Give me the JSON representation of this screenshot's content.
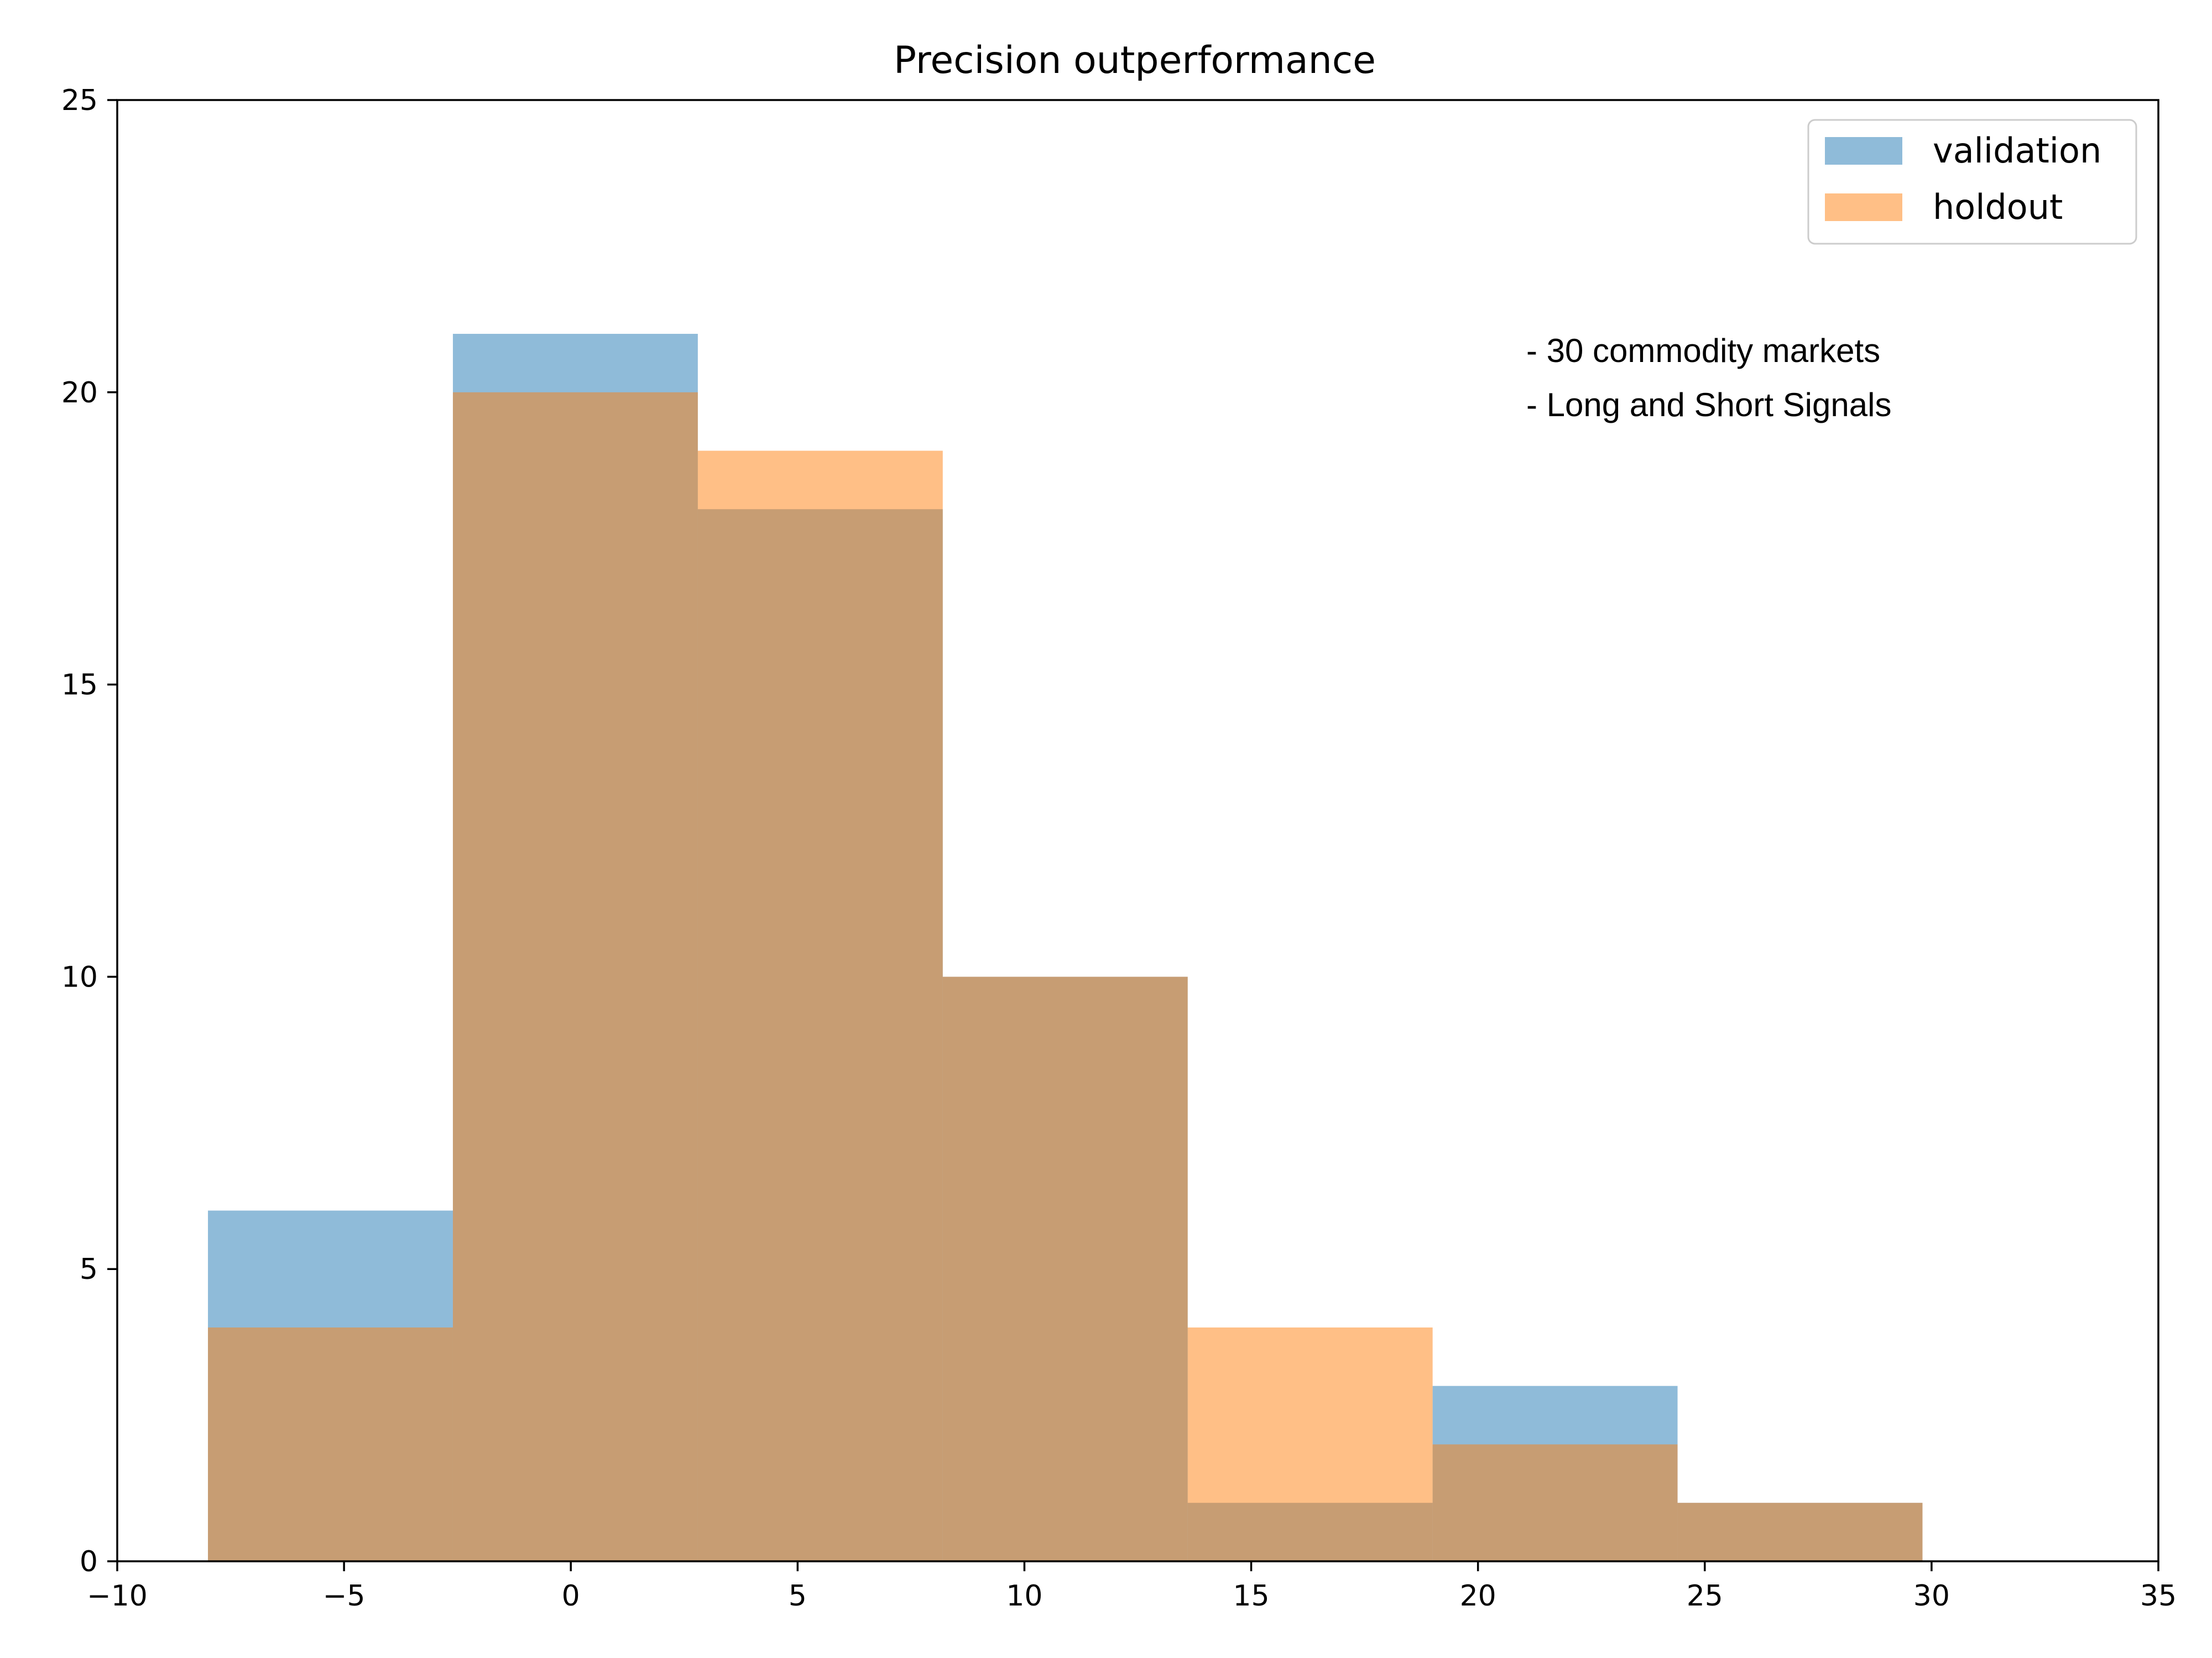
{
  "chart_data": {
    "type": "bar",
    "title": "Precision outperformance",
    "xlabel": "",
    "ylabel": "",
    "xlim": [
      -10,
      35
    ],
    "ylim": [
      0,
      25
    ],
    "xticks": [
      -10,
      -5,
      0,
      5,
      10,
      15,
      20,
      25,
      30,
      35
    ],
    "xtick_labels": [
      "−10",
      "−5",
      "0",
      "5",
      "10",
      "15",
      "20",
      "25",
      "30",
      "35"
    ],
    "yticks": [
      0,
      5,
      10,
      15,
      20,
      25
    ],
    "ytick_labels": [
      "0",
      "5",
      "10",
      "15",
      "20",
      "25"
    ],
    "bin_edges": [
      -8,
      -2.6,
      2.8,
      8.2,
      13.6,
      19.0,
      24.4,
      29.8
    ],
    "series": [
      {
        "name": "validation",
        "values": [
          6,
          21,
          18,
          10,
          1,
          3,
          1
        ],
        "color": "#1f77b4"
      },
      {
        "name": "holdout",
        "values": [
          4,
          20,
          19,
          10,
          4,
          2,
          1
        ],
        "color": "#ff7f0e"
      }
    ],
    "series_opacity": 0.5,
    "legend": "top-right",
    "grid": false,
    "annotations": [
      "- 30 commodity markets",
      "- Long and Short Signals"
    ]
  }
}
